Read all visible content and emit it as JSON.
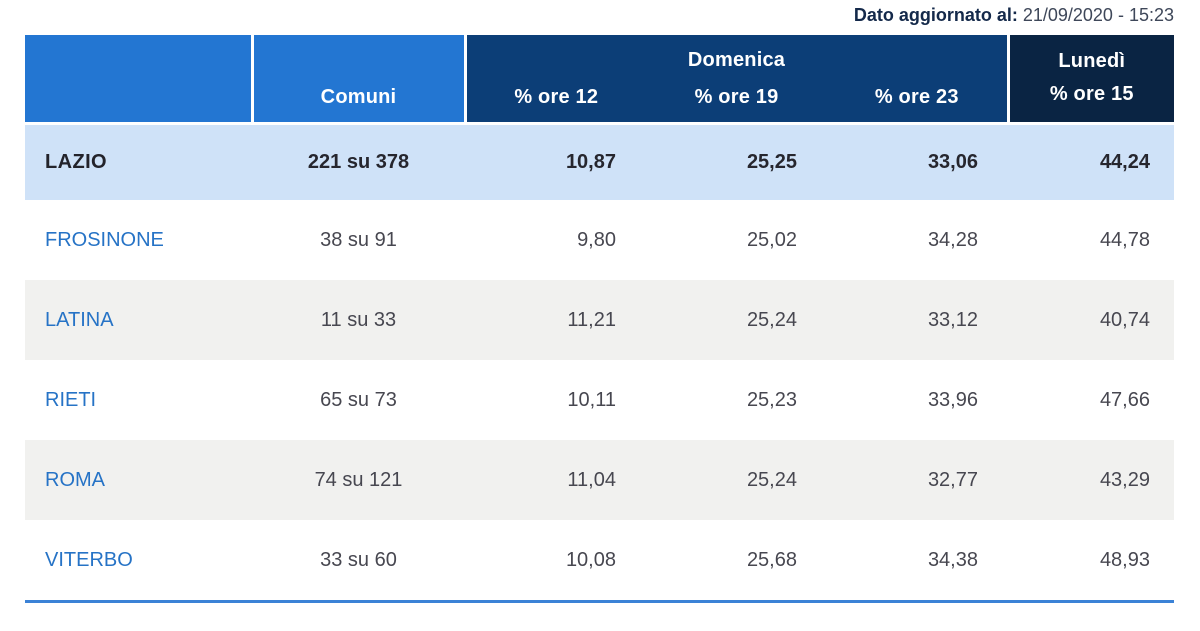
{
  "meta": {
    "updated_label": "Dato aggiornato al:",
    "updated_value": "21/09/2020 - 15:23"
  },
  "table": {
    "header": {
      "comuni": "Comuni",
      "domenica": "Domenica",
      "domenica_subs": [
        "% ore 12",
        "% ore 19",
        "% ore 23"
      ],
      "lunedi": "Lunedì",
      "lunedi_sub": "% ore 15"
    },
    "summary_row": {
      "region": "LAZIO",
      "comuni": "221 su 378",
      "values": [
        "10,87",
        "25,25",
        "33,06",
        "44,24"
      ]
    },
    "rows": [
      {
        "region": "FROSINONE",
        "comuni": "38 su 91",
        "values": [
          "9,80",
          "25,02",
          "34,28",
          "44,78"
        ]
      },
      {
        "region": "LATINA",
        "comuni": "11 su 33",
        "values": [
          "11,21",
          "25,24",
          "33,12",
          "40,74"
        ]
      },
      {
        "region": "RIETI",
        "comuni": "65 su 73",
        "values": [
          "10,11",
          "25,23",
          "33,96",
          "47,66"
        ]
      },
      {
        "region": "ROMA",
        "comuni": "74 su 121",
        "values": [
          "11,04",
          "25,24",
          "32,77",
          "43,29"
        ]
      },
      {
        "region": "VITERBO",
        "comuni": "33 su 60",
        "values": [
          "10,08",
          "25,68",
          "34,38",
          "48,93"
        ]
      }
    ]
  },
  "colors": {
    "header_light_blue": "#2376d2",
    "header_navy": "#0c3e77",
    "header_dark_navy": "#0a2443",
    "summary_row_bg": "#cfe2f8",
    "alt_row_bg": "#f1f1ef",
    "region_link_blue": "#2673c6",
    "bottom_rule_blue": "#3b82d6",
    "updated_label_color": "#14294a"
  }
}
